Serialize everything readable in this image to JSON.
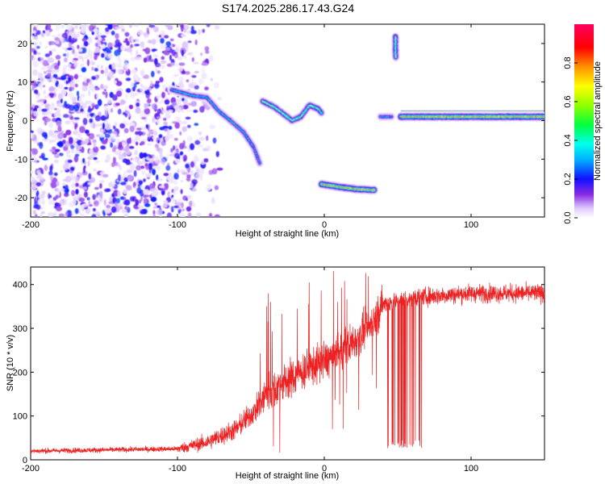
{
  "title": "S174.2025.286.17.43.G24",
  "chart_data": [
    {
      "type": "heatmap",
      "xlabel": "Height of straight line (km)",
      "ylabel": "Frequency (Hz)",
      "xlim": [
        -200,
        150
      ],
      "ylim": [
        -25,
        25
      ],
      "xticks": [
        -200,
        -100,
        0,
        100
      ],
      "yticks": [
        -20,
        -10,
        0,
        10,
        20
      ],
      "colorbar": {
        "label": "Normalized spectral amplitude",
        "range": [
          0,
          1
        ],
        "ticks": [
          "0.0",
          "0.2",
          "0.4",
          "0.6",
          "0.8"
        ]
      },
      "ridges": [
        {
          "name": "scattered-noise",
          "x_range": [
            -200,
            -100
          ],
          "freq_range": [
            -25,
            25
          ],
          "amplitude": 0.15
        },
        {
          "name": "descending-track",
          "points": [
            [
              -104,
              8
            ],
            [
              -90,
              6.5
            ],
            [
              -80,
              6
            ],
            [
              -72,
              2.5
            ],
            [
              -64,
              0
            ],
            [
              -55,
              -3
            ],
            [
              -48,
              -7
            ],
            [
              -44,
              -11
            ]
          ],
          "amplitude": 0.45
        },
        {
          "name": "upper-curve",
          "points": [
            [
              -42,
              5
            ],
            [
              -34,
              3.5
            ],
            [
              -27,
              1.5
            ],
            [
              -22,
              0
            ],
            [
              -16,
              1
            ],
            [
              -10,
              4
            ],
            [
              -4,
              3
            ],
            [
              -2,
              2
            ]
          ],
          "amplitude": 0.65
        },
        {
          "name": "lower-band",
          "points": [
            [
              -2,
              -16.5
            ],
            [
              10,
              -17.2
            ],
            [
              22,
              -17.8
            ],
            [
              34,
              -18
            ]
          ],
          "amplitude": 0.92
        },
        {
          "name": "short-segment",
          "points": [
            [
              38,
              1
            ],
            [
              46,
              1
            ]
          ],
          "amplitude": 0.35
        },
        {
          "name": "high-spot",
          "points": [
            [
              48,
              18
            ],
            [
              49,
              22
            ]
          ],
          "amplitude": 0.7
        },
        {
          "name": "main-band",
          "points": [
            [
              52,
              1
            ],
            [
              80,
              1
            ],
            [
              120,
              1
            ],
            [
              150,
              1
            ]
          ],
          "amplitude": 0.95
        }
      ]
    },
    {
      "type": "line",
      "xlabel": "Height of straight line (km)",
      "ylabel": "SNR (10 * v/v)",
      "xlim": [
        -200,
        150
      ],
      "ylim": [
        0,
        440
      ],
      "xticks": [
        -200,
        -100,
        0,
        100
      ],
      "yticks": [
        0,
        100,
        200,
        300,
        400
      ],
      "series_color": "#ee2222",
      "trend": {
        "x": [
          -200,
          -100,
          -80,
          -60,
          -45,
          -40,
          -30,
          -20,
          -10,
          0,
          10,
          20,
          30,
          36,
          40,
          60,
          80,
          100,
          120,
          150
        ],
        "y": [
          20,
          25,
          40,
          70,
          120,
          150,
          170,
          190,
          210,
          225,
          245,
          270,
          300,
          330,
          355,
          370,
          375,
          380,
          380,
          380
        ]
      },
      "dropout_range": [
        43,
        67
      ],
      "dropout_min": 25
    }
  ]
}
